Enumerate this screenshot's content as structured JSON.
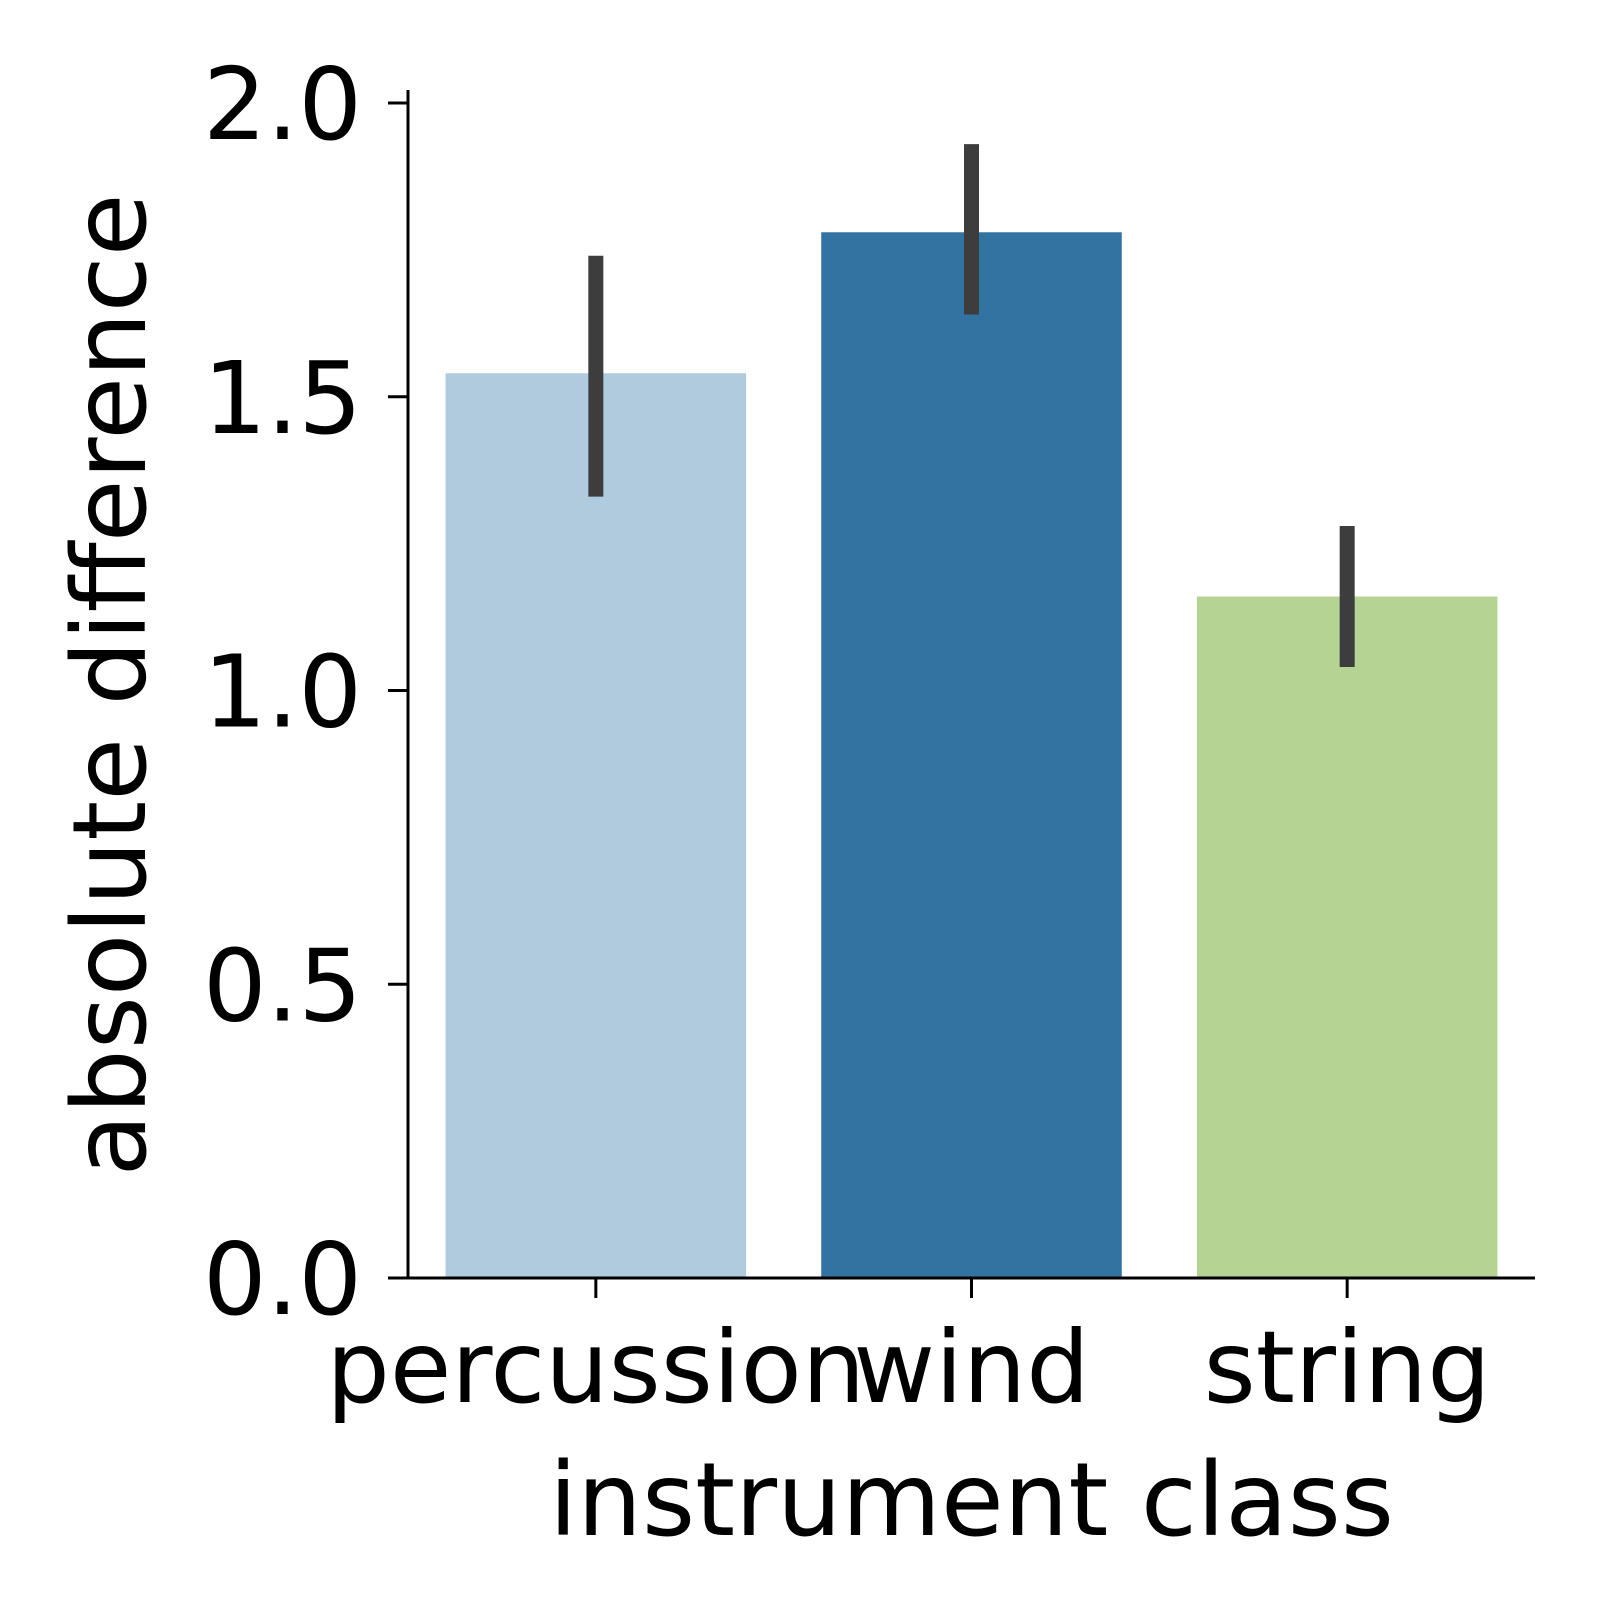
{
  "chart_data": {
    "type": "bar",
    "categories": [
      "percussion",
      "wind",
      "string"
    ],
    "values": [
      1.54,
      1.78,
      1.16
    ],
    "error_bars": [
      {
        "low": 1.33,
        "high": 1.74
      },
      {
        "low": 1.64,
        "high": 1.93
      },
      {
        "low": 1.04,
        "high": 1.28
      }
    ],
    "colors": [
      "#b0cbde",
      "#3373a1",
      "#b5d493"
    ],
    "error_bar_color": "#3d3d3d",
    "xlabel": "instrument class",
    "ylabel": "absolute difference",
    "ylim": [
      0,
      2.03
    ],
    "yticks": [
      0.0,
      0.5,
      1.0,
      1.5,
      2.0
    ],
    "ytick_labels": [
      "0.0",
      "0.5",
      "1.0",
      "1.5",
      "2.0"
    ],
    "grid": false,
    "legend": "none"
  }
}
